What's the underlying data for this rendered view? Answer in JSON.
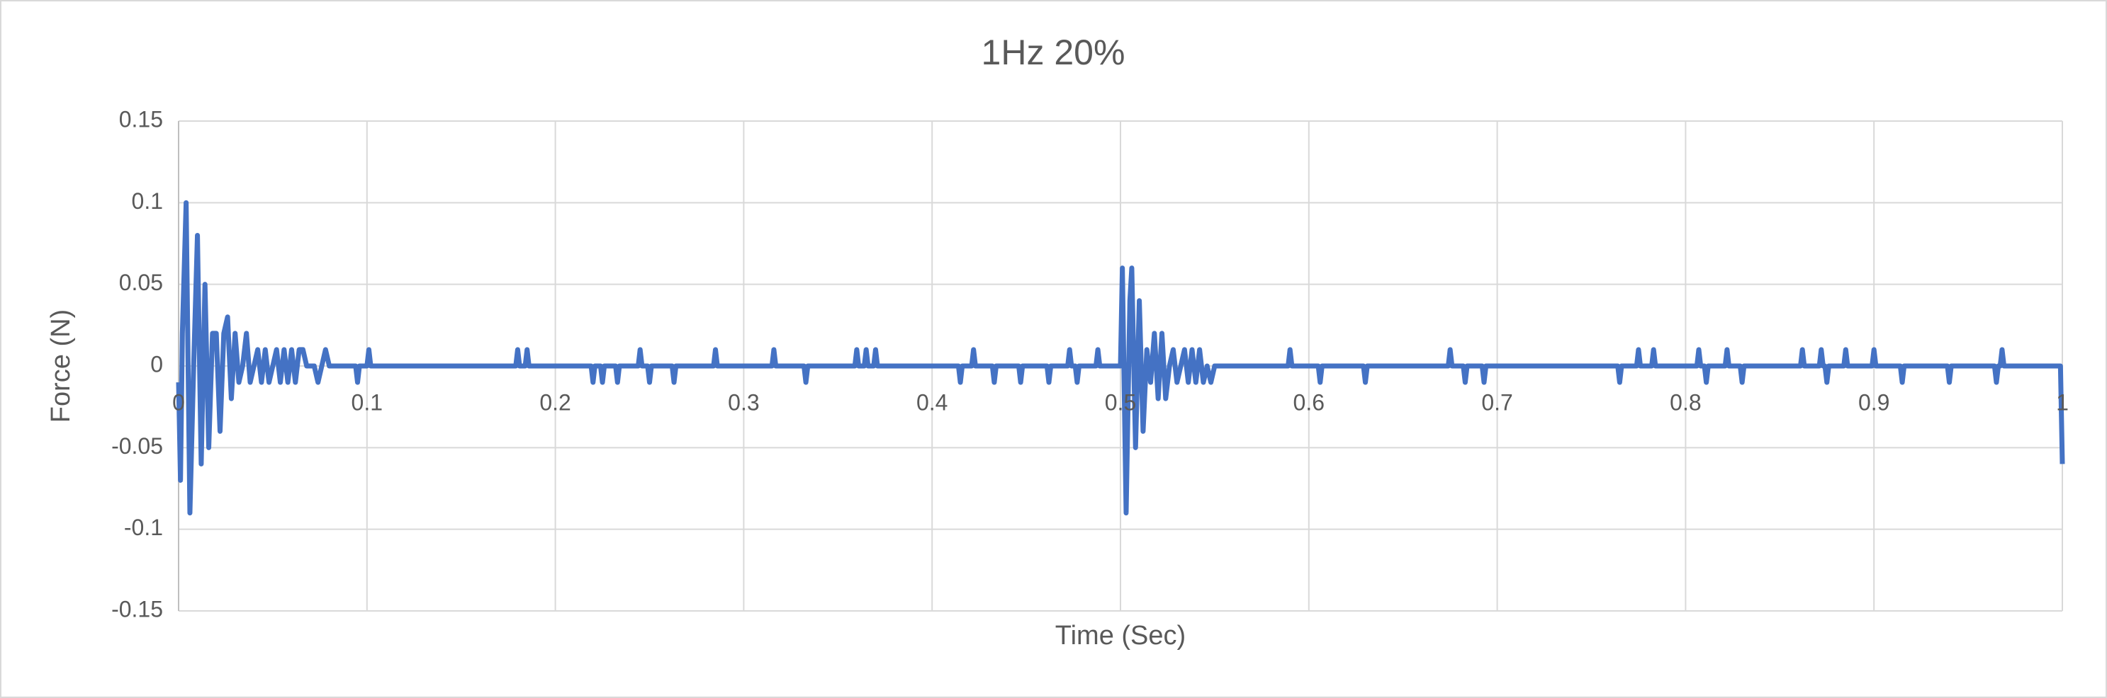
{
  "chart_data": {
    "type": "line",
    "title": "1Hz 20%",
    "x_label": "Time (Sec)",
    "y_label": "Force (N)",
    "xlim": [
      0,
      1
    ],
    "xticks": [
      0,
      0.1,
      0.2,
      0.3,
      0.4,
      0.5,
      0.6,
      0.7,
      0.8,
      0.9,
      1
    ],
    "ylim": [
      -0.15,
      0.15
    ],
    "yticks": [
      -0.15,
      -0.1,
      -0.05,
      0,
      0.05,
      0.1,
      0.15
    ],
    "grid": true,
    "series": [
      {
        "color": "#4472c4",
        "x": [
          0,
          0.001,
          0.002,
          0.004,
          0.006,
          0.008,
          0.01,
          0.012,
          0.014,
          0.016,
          0.018,
          0.02,
          0.022,
          0.024,
          0.026,
          0.028,
          0.03,
          0.032,
          0.034,
          0.036,
          0.038,
          0.04,
          0.042,
          0.044,
          0.046,
          0.048,
          0.05,
          0.052,
          0.054,
          0.056,
          0.058,
          0.06,
          0.062,
          0.064,
          0.066,
          0.068,
          0.072,
          0.074,
          0.076,
          0.078,
          0.08,
          0.094,
          0.095,
          0.096,
          0.1,
          0.101,
          0.102,
          0.179,
          0.18,
          0.181,
          0.184,
          0.185,
          0.186,
          0.219,
          0.22,
          0.221,
          0.224,
          0.225,
          0.226,
          0.232,
          0.233,
          0.234,
          0.244,
          0.245,
          0.246,
          0.249,
          0.25,
          0.251,
          0.262,
          0.263,
          0.264,
          0.284,
          0.285,
          0.286,
          0.315,
          0.316,
          0.317,
          0.332,
          0.333,
          0.334,
          0.359,
          0.36,
          0.361,
          0.364,
          0.365,
          0.366,
          0.369,
          0.37,
          0.371,
          0.414,
          0.415,
          0.416,
          0.421,
          0.422,
          0.423,
          0.432,
          0.433,
          0.434,
          0.446,
          0.447,
          0.448,
          0.461,
          0.462,
          0.463,
          0.472,
          0.473,
          0.474,
          0.476,
          0.477,
          0.478,
          0.487,
          0.488,
          0.489,
          0.5,
          0.501,
          0.503,
          0.505,
          0.506,
          0.508,
          0.51,
          0.512,
          0.514,
          0.516,
          0.518,
          0.52,
          0.522,
          0.524,
          0.526,
          0.528,
          0.53,
          0.532,
          0.534,
          0.536,
          0.538,
          0.54,
          0.542,
          0.544,
          0.546,
          0.548,
          0.55,
          0.589,
          0.59,
          0.591,
          0.605,
          0.606,
          0.607,
          0.629,
          0.63,
          0.631,
          0.674,
          0.675,
          0.676,
          0.682,
          0.683,
          0.684,
          0.692,
          0.693,
          0.694,
          0.764,
          0.765,
          0.766,
          0.774,
          0.775,
          0.776,
          0.782,
          0.783,
          0.784,
          0.806,
          0.807,
          0.808,
          0.81,
          0.811,
          0.812,
          0.821,
          0.822,
          0.823,
          0.829,
          0.83,
          0.831,
          0.861,
          0.862,
          0.863,
          0.871,
          0.872,
          0.873,
          0.874,
          0.875,
          0.876,
          0.884,
          0.885,
          0.886,
          0.899,
          0.9,
          0.901,
          0.914,
          0.915,
          0.916,
          0.939,
          0.94,
          0.941,
          0.964,
          0.965,
          0.966,
          0.967,
          0.968,
          0.969,
          0.999,
          1
        ],
        "values": [
          -0.01,
          -0.07,
          0.02,
          0.1,
          -0.09,
          0,
          0.08,
          -0.06,
          0.05,
          -0.05,
          0.02,
          0.02,
          -0.04,
          0.02,
          0.03,
          -0.02,
          0.02,
          -0.01,
          0,
          0.02,
          -0.01,
          0,
          0.01,
          -0.01,
          0.01,
          -0.01,
          0,
          0.01,
          -0.01,
          0.01,
          -0.01,
          0.01,
          -0.01,
          0.01,
          0.01,
          0,
          0,
          -0.01,
          0,
          0.01,
          0,
          0,
          -0.01,
          0,
          0,
          0.01,
          0,
          0,
          0.01,
          0,
          0,
          0.01,
          0,
          0,
          -0.01,
          0,
          0,
          -0.01,
          0,
          0,
          -0.01,
          0,
          0,
          0.01,
          0,
          0,
          -0.01,
          0,
          0,
          -0.01,
          0,
          0,
          0.01,
          0,
          0,
          0.01,
          0,
          0,
          -0.01,
          0,
          0,
          0.01,
          0,
          0,
          0.01,
          0,
          0,
          0.01,
          0,
          0,
          -0.01,
          0,
          0,
          0.01,
          0,
          0,
          -0.01,
          0,
          0,
          -0.01,
          0,
          0,
          -0.01,
          0,
          0,
          0.01,
          0,
          0,
          -0.01,
          0,
          0,
          0.01,
          0,
          0,
          0.06,
          -0.09,
          0.04,
          0.06,
          -0.05,
          0.04,
          -0.04,
          0.01,
          -0.01,
          0.02,
          -0.02,
          0.02,
          -0.02,
          0,
          0.01,
          -0.01,
          0,
          0.01,
          -0.01,
          0.01,
          -0.01,
          0.01,
          -0.01,
          0,
          -0.01,
          0,
          0,
          0.01,
          0,
          0,
          -0.01,
          0,
          0,
          -0.01,
          0,
          0,
          0.01,
          0,
          0,
          -0.01,
          0,
          0,
          -0.01,
          0,
          0,
          -0.01,
          0,
          0,
          0.01,
          0,
          0,
          0.01,
          0,
          0,
          0.01,
          0,
          0,
          -0.01,
          0,
          0,
          0.01,
          0,
          0,
          -0.01,
          0,
          0,
          0.01,
          0,
          0,
          0.01,
          0,
          0,
          -0.01,
          0,
          0,
          0.01,
          0,
          0,
          0.01,
          0,
          0,
          -0.01,
          0,
          0,
          -0.01,
          0,
          0,
          -0.01,
          0,
          0,
          0.01,
          0,
          0,
          -0.06
        ]
      }
    ]
  }
}
